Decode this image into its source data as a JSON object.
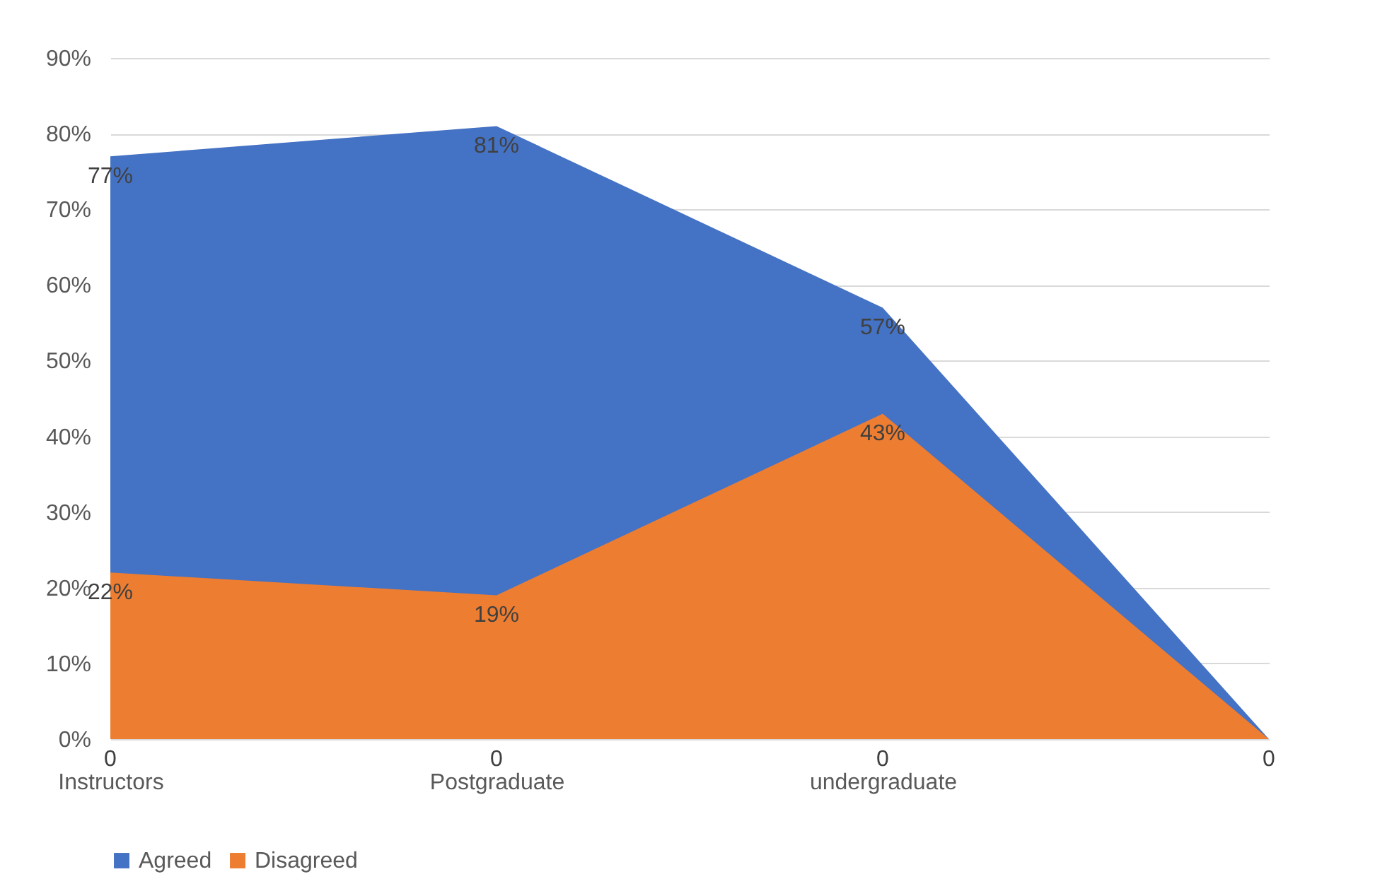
{
  "chart_data": {
    "type": "area",
    "categories": [
      "Instructors",
      "Postgraduate",
      "undergraduate",
      null
    ],
    "series": [
      {
        "name": "Agreed",
        "color": "#4472c4",
        "values": [
          77,
          81,
          57,
          0
        ],
        "value_labels": [
          "77%",
          "81%",
          "57%",
          "0"
        ]
      },
      {
        "name": "Disagreed",
        "color": "#ed7d31",
        "values": [
          22,
          19,
          43,
          0
        ],
        "value_labels": [
          "22%",
          "19%",
          "43%",
          null
        ]
      }
    ],
    "annotations": [
      {
        "text": "0",
        "x": "Instructors",
        "y": 0
      },
      {
        "text": "0",
        "x": "Postgraduate",
        "y": 0
      },
      {
        "text": "0",
        "x": "undergraduate",
        "y": 0
      }
    ],
    "ylim": [
      0,
      90
    ],
    "yticks": [
      {
        "value": 0,
        "label": "0%"
      },
      {
        "value": 10,
        "label": "10%"
      },
      {
        "value": 20,
        "label": "20%"
      },
      {
        "value": 30,
        "label": "30%"
      },
      {
        "value": 40,
        "label": "40%"
      },
      {
        "value": 50,
        "label": "50%"
      },
      {
        "value": 60,
        "label": "60%"
      },
      {
        "value": 70,
        "label": "70%"
      },
      {
        "value": 80,
        "label": "80%"
      },
      {
        "value": 90,
        "label": "90%"
      }
    ],
    "grid": "y",
    "legend": "bottom"
  }
}
